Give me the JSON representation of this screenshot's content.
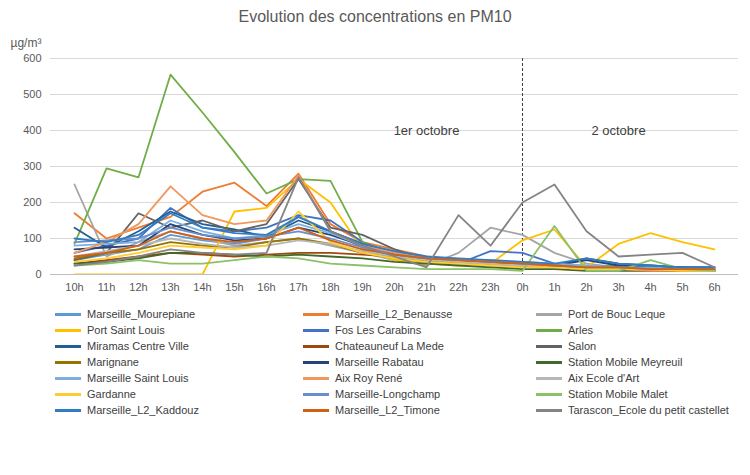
{
  "chart_data": {
    "type": "line",
    "title": "Evolution des concentrations en PM10",
    "y_label": "µg/m³",
    "categories": [
      "10h",
      "11h",
      "12h",
      "13h",
      "14h",
      "15h",
      "16h",
      "17h",
      "18h",
      "19h",
      "20h",
      "21h",
      "22h",
      "23h",
      "0h",
      "1h",
      "2h",
      "3h",
      "4h",
      "5h",
      "6h"
    ],
    "ylim": [
      0,
      600
    ],
    "yticks": [
      0,
      100,
      200,
      300,
      400,
      500,
      600
    ],
    "grid": true,
    "legend": "bottom",
    "vlines": [
      "0h"
    ],
    "annotations": [
      {
        "text": "1er octobre",
        "x": "21h",
        "y": 400
      },
      {
        "text": "2 octobre",
        "x": "3h",
        "y": 400
      }
    ],
    "series": [
      {
        "name": "Marseille_Mourepiane",
        "color": "#5B9BD5",
        "values": [
          40,
          55,
          70,
          110,
          95,
          85,
          100,
          160,
          120,
          75,
          50,
          35,
          30,
          25,
          20,
          20,
          15,
          15,
          12,
          10,
          10
        ]
      },
      {
        "name": "Marseille_L2_Benausse",
        "color": "#ED7D31",
        "values": [
          170,
          100,
          130,
          160,
          230,
          255,
          190,
          280,
          140,
          90,
          70,
          50,
          40,
          35,
          30,
          25,
          20,
          15,
          10,
          10,
          10
        ]
      },
      {
        "name": "Port de Bouc Leque",
        "color": "#A5A5A5",
        "values": [
          250,
          50,
          90,
          120,
          100,
          80,
          90,
          100,
          80,
          60,
          40,
          25,
          60,
          130,
          110,
          60,
          30,
          20,
          20,
          15,
          10
        ]
      },
      {
        "name": "Port Saint Louis",
        "color": "#FFC000",
        "values": [
          0,
          0,
          0,
          0,
          0,
          175,
          185,
          265,
          200,
          70,
          40,
          30,
          25,
          30,
          95,
          125,
          20,
          85,
          115,
          90,
          70
        ]
      },
      {
        "name": "Fos Les Carabins",
        "color": "#4472C4",
        "values": [
          60,
          80,
          100,
          185,
          130,
          120,
          130,
          165,
          150,
          90,
          55,
          40,
          30,
          65,
          60,
          30,
          20,
          25,
          20,
          15,
          15
        ]
      },
      {
        "name": "Arles",
        "color": "#70AD47",
        "values": [
          85,
          295,
          270,
          555,
          450,
          340,
          225,
          265,
          260,
          90,
          50,
          40,
          30,
          25,
          20,
          20,
          20,
          25,
          25,
          20,
          15
        ]
      },
      {
        "name": "Miramas Centre Ville",
        "color": "#255E91",
        "values": [
          130,
          75,
          120,
          175,
          140,
          125,
          105,
          150,
          120,
          85,
          60,
          45,
          40,
          35,
          30,
          25,
          45,
          30,
          25,
          20,
          20
        ]
      },
      {
        "name": "Chateauneuf La Mede",
        "color": "#9E480E",
        "values": [
          30,
          40,
          50,
          60,
          55,
          50,
          55,
          60,
          60,
          55,
          50,
          40,
          35,
          30,
          25,
          20,
          15,
          15,
          15,
          10,
          10
        ]
      },
      {
        "name": "Salon",
        "color": "#636363",
        "values": [
          40,
          60,
          170,
          130,
          150,
          120,
          140,
          265,
          130,
          110,
          70,
          40,
          35,
          30,
          25,
          20,
          20,
          20,
          15,
          15,
          15
        ]
      },
      {
        "name": "Marignane",
        "color": "#997300",
        "values": [
          45,
          60,
          70,
          90,
          80,
          75,
          90,
          100,
          85,
          60,
          45,
          35,
          30,
          25,
          20,
          20,
          15,
          15,
          15,
          10,
          10
        ]
      },
      {
        "name": "Marseille Rabatau",
        "color": "#264478",
        "values": [
          70,
          75,
          80,
          140,
          110,
          95,
          100,
          130,
          110,
          80,
          60,
          45,
          40,
          35,
          30,
          25,
          40,
          25,
          20,
          20,
          20
        ]
      },
      {
        "name": "Station Mobile Meyreuil",
        "color": "#43682B",
        "values": [
          30,
          35,
          45,
          60,
          60,
          55,
          50,
          55,
          50,
          45,
          35,
          30,
          25,
          20,
          15,
          15,
          10,
          10,
          10,
          10,
          10
        ]
      },
      {
        "name": "Marseille Saint Louis",
        "color": "#7CAFDD",
        "values": [
          80,
          85,
          90,
          150,
          120,
          100,
          110,
          140,
          115,
          80,
          60,
          45,
          40,
          40,
          35,
          30,
          25,
          20,
          20,
          15,
          15
        ]
      },
      {
        "name": "Aix Roy René",
        "color": "#F1975A",
        "values": [
          60,
          90,
          140,
          245,
          165,
          140,
          150,
          275,
          120,
          80,
          60,
          45,
          35,
          30,
          25,
          20,
          15,
          15,
          10,
          10,
          10
        ]
      },
      {
        "name": "Aix Ecole d'Art",
        "color": "#B7B7B7",
        "values": [
          50,
          65,
          80,
          100,
          85,
          75,
          80,
          95,
          85,
          65,
          50,
          40,
          35,
          30,
          25,
          25,
          20,
          15,
          15,
          15,
          10
        ]
      },
      {
        "name": "Gardanne",
        "color": "#FFCD33",
        "values": [
          35,
          45,
          60,
          80,
          75,
          70,
          80,
          175,
          90,
          60,
          45,
          35,
          30,
          25,
          20,
          20,
          15,
          15,
          15,
          10,
          10
        ]
      },
      {
        "name": "Marseille-Longchamp",
        "color": "#698ED0",
        "values": [
          90,
          95,
          100,
          130,
          110,
          100,
          105,
          120,
          100,
          75,
          55,
          45,
          40,
          35,
          30,
          25,
          20,
          20,
          15,
          15,
          15
        ]
      },
      {
        "name": "Station Mobile Malet",
        "color": "#8CC168",
        "values": [
          25,
          30,
          40,
          30,
          30,
          40,
          50,
          45,
          30,
          25,
          20,
          15,
          15,
          15,
          10,
          135,
          10,
          10,
          40,
          15,
          10
        ]
      },
      {
        "name": "Marseille_L2_Kaddouz",
        "color": "#327DC2",
        "values": [
          100,
          90,
          110,
          170,
          130,
          115,
          110,
          160,
          120,
          85,
          65,
          50,
          45,
          40,
          35,
          30,
          45,
          30,
          25,
          20,
          20
        ]
      },
      {
        "name": "Marseille_L2_Timone",
        "color": "#D26012",
        "values": [
          50,
          60,
          80,
          120,
          100,
          90,
          100,
          130,
          95,
          70,
          55,
          45,
          40,
          35,
          30,
          25,
          20,
          20,
          15,
          15,
          15
        ]
      },
      {
        "name": "Tarascon_Ecole du petit castellet",
        "color": "#848484",
        "values": [
          25,
          35,
          50,
          70,
          60,
          55,
          60,
          270,
          120,
          80,
          50,
          20,
          165,
          80,
          200,
          250,
          120,
          50,
          55,
          60,
          20
        ]
      }
    ]
  }
}
